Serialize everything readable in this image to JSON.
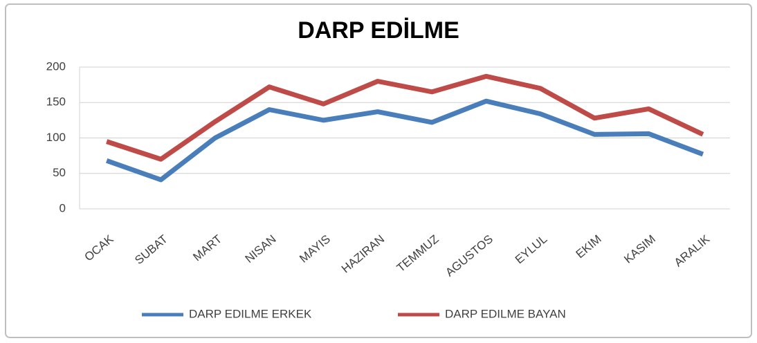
{
  "chart_data": {
    "type": "line",
    "title": "DARP EDİLME",
    "categories": [
      "OCAK",
      "SUBAT",
      "MART",
      "NISAN",
      "MAYIS",
      "HAZIRAN",
      "TEMMUZ",
      "AGUSTOS",
      "EYLUL",
      "EKIM",
      "KASIM",
      "ARALIK"
    ],
    "series": [
      {
        "name": "DARP EDILME ERKEK",
        "color": "#4a7ebb",
        "values": [
          68,
          41,
          100,
          140,
          125,
          137,
          122,
          152,
          134,
          105,
          106,
          77
        ]
      },
      {
        "name": "DARP EDILME BAYAN",
        "color": "#be4b48",
        "values": [
          95,
          70,
          123,
          172,
          148,
          180,
          165,
          187,
          170,
          128,
          141,
          105
        ]
      }
    ],
    "ylim": [
      0,
      200
    ],
    "yticks": [
      0,
      50,
      100,
      150,
      200
    ],
    "grid": true,
    "legend": "bottom"
  }
}
